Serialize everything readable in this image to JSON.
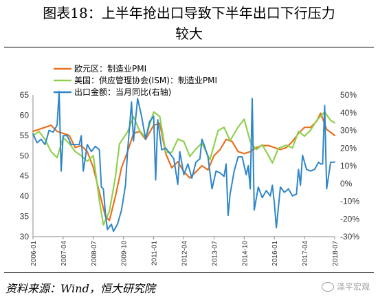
{
  "title": {
    "line1": "图表18：上半年抢出口导致下半年出口下行压力",
    "line2": "较大"
  },
  "source": "资料来源：Wind，恒大研究院",
  "watermark": "泽平宏观",
  "watermark_icon": "wechat-icon",
  "chart_data": {
    "type": "line",
    "left_axis": {
      "ylim": [
        30,
        65
      ],
      "ticks": [
        30,
        35,
        40,
        45,
        50,
        55,
        60,
        65
      ]
    },
    "right_axis": {
      "ylim": [
        -30,
        50
      ],
      "ticks": [
        "-30%",
        "-20%",
        "-10%",
        "0%",
        "10%",
        "20%",
        "30%",
        "40%",
        "50%"
      ]
    },
    "x_ticks": [
      "2006-01",
      "2007-04",
      "2008-07",
      "2009-10",
      "2011-01",
      "2012-04",
      "2013-07",
      "2014-10",
      "2016-01",
      "2017-04",
      "2018-07"
    ],
    "x_range": [
      "2006-01",
      "2018-07"
    ],
    "legend_position": "top-left",
    "grid": false,
    "series": [
      {
        "name": "欧元区：制造业PMI",
        "color": "#E8701E",
        "axis": "left",
        "points": [
          [
            "2006-01",
            56
          ],
          [
            "2006-07",
            57
          ],
          [
            "2006-10",
            57.5
          ],
          [
            "2007-01",
            56
          ],
          [
            "2007-04",
            55.5
          ],
          [
            "2007-07",
            55
          ],
          [
            "2007-10",
            52
          ],
          [
            "2008-01",
            52.5
          ],
          [
            "2008-04",
            51
          ],
          [
            "2008-07",
            47
          ],
          [
            "2008-10",
            41
          ],
          [
            "2009-01",
            35
          ],
          [
            "2009-03",
            34
          ],
          [
            "2009-06",
            40
          ],
          [
            "2009-09",
            47
          ],
          [
            "2009-12",
            51
          ],
          [
            "2010-03",
            55.5
          ],
          [
            "2010-06",
            56
          ],
          [
            "2010-09",
            54
          ],
          [
            "2011-01",
            57.5
          ],
          [
            "2011-04",
            58
          ],
          [
            "2011-07",
            50.5
          ],
          [
            "2011-10",
            47
          ],
          [
            "2012-01",
            48.5
          ],
          [
            "2012-04",
            46
          ],
          [
            "2012-07",
            44.5
          ],
          [
            "2012-10",
            46
          ],
          [
            "2013-01",
            47.5
          ],
          [
            "2013-04",
            46.5
          ],
          [
            "2013-07",
            50
          ],
          [
            "2013-10",
            51.5
          ],
          [
            "2014-01",
            54
          ],
          [
            "2014-04",
            53.5
          ],
          [
            "2014-07",
            51
          ],
          [
            "2014-10",
            50.5
          ],
          [
            "2015-01",
            51
          ],
          [
            "2015-04",
            52
          ],
          [
            "2015-07",
            52.5
          ],
          [
            "2015-10",
            52.5
          ],
          [
            "2016-01",
            52
          ],
          [
            "2016-04",
            51.5
          ],
          [
            "2016-07",
            52
          ],
          [
            "2016-10",
            53.5
          ],
          [
            "2017-01",
            55.5
          ],
          [
            "2017-04",
            57
          ],
          [
            "2017-07",
            57
          ],
          [
            "2017-10",
            58.5
          ],
          [
            "2017-12",
            60.5
          ],
          [
            "2018-03",
            56.5
          ],
          [
            "2018-07",
            55
          ]
        ]
      },
      {
        "name": "美国：供应管理协会(ISM)：制造业PMI",
        "color": "#8FD14F",
        "axis": "left",
        "points": [
          [
            "2006-01",
            55
          ],
          [
            "2006-04",
            56
          ],
          [
            "2006-07",
            54
          ],
          [
            "2006-10",
            51
          ],
          [
            "2007-01",
            49.5
          ],
          [
            "2007-04",
            54.5
          ],
          [
            "2007-07",
            53
          ],
          [
            "2007-10",
            51
          ],
          [
            "2008-01",
            50
          ],
          [
            "2008-04",
            48.6
          ],
          [
            "2008-07",
            50
          ],
          [
            "2008-10",
            38.9
          ],
          [
            "2008-12",
            32.9
          ],
          [
            "2009-03",
            36.3
          ],
          [
            "2009-06",
            44.8
          ],
          [
            "2009-08",
            52.9
          ],
          [
            "2009-12",
            55.9
          ],
          [
            "2010-03",
            59.6
          ],
          [
            "2010-06",
            56.2
          ],
          [
            "2010-09",
            54.4
          ],
          [
            "2011-01",
            60.8
          ],
          [
            "2011-04",
            59.7
          ],
          [
            "2011-07",
            50.9
          ],
          [
            "2011-10",
            50.8
          ],
          [
            "2012-01",
            54.1
          ],
          [
            "2012-04",
            53.5
          ],
          [
            "2012-07",
            49.8
          ],
          [
            "2012-10",
            51.7
          ],
          [
            "2013-01",
            53.1
          ],
          [
            "2013-05",
            49
          ],
          [
            "2013-09",
            56.2
          ],
          [
            "2013-12",
            57
          ],
          [
            "2014-03",
            53.7
          ],
          [
            "2014-07",
            57.1
          ],
          [
            "2014-10",
            59
          ],
          [
            "2015-01",
            53.5
          ],
          [
            "2015-04",
            51.5
          ],
          [
            "2015-07",
            52.7
          ],
          [
            "2015-10",
            50.1
          ],
          [
            "2015-12",
            48.2
          ],
          [
            "2016-03",
            51.8
          ],
          [
            "2016-07",
            52.6
          ],
          [
            "2016-10",
            51.9
          ],
          [
            "2017-01",
            56
          ],
          [
            "2017-04",
            54.8
          ],
          [
            "2017-07",
            56.3
          ],
          [
            "2017-10",
            58.7
          ],
          [
            "2018-02",
            60.8
          ],
          [
            "2018-05",
            58.7
          ],
          [
            "2018-07",
            58.1
          ]
        ]
      },
      {
        "name": "出口金额：当月同比(右轴)",
        "color": "#2E86C8",
        "axis": "right",
        "points": [
          [
            "2006-01",
            28
          ],
          [
            "2006-03",
            23
          ],
          [
            "2006-05",
            25
          ],
          [
            "2006-07",
            22
          ],
          [
            "2006-09",
            30
          ],
          [
            "2006-11",
            29
          ],
          [
            "2007-01",
            33
          ],
          [
            "2007-02",
            52
          ],
          [
            "2007-03",
            7
          ],
          [
            "2007-04",
            27
          ],
          [
            "2007-06",
            27
          ],
          [
            "2007-08",
            22
          ],
          [
            "2007-10",
            22
          ],
          [
            "2007-12",
            22
          ],
          [
            "2008-01",
            27
          ],
          [
            "2008-02",
            7
          ],
          [
            "2008-04",
            22
          ],
          [
            "2008-06",
            18
          ],
          [
            "2008-08",
            21
          ],
          [
            "2008-10",
            19
          ],
          [
            "2008-11",
            -2
          ],
          [
            "2008-12",
            -3
          ],
          [
            "2009-01",
            -17
          ],
          [
            "2009-02",
            -26
          ],
          [
            "2009-04",
            -23
          ],
          [
            "2009-05",
            -27
          ],
          [
            "2009-07",
            -23
          ],
          [
            "2009-09",
            -15
          ],
          [
            "2009-11",
            -1
          ],
          [
            "2009-12",
            18
          ],
          [
            "2010-02",
            46
          ],
          [
            "2010-03",
            24
          ],
          [
            "2010-05",
            48
          ],
          [
            "2010-07",
            38
          ],
          [
            "2010-09",
            25
          ],
          [
            "2010-11",
            35
          ],
          [
            "2011-01",
            38
          ],
          [
            "2011-02",
            2
          ],
          [
            "2011-03",
            36
          ],
          [
            "2011-05",
            19
          ],
          [
            "2011-07",
            20
          ],
          [
            "2011-09",
            17
          ],
          [
            "2011-11",
            14
          ],
          [
            "2012-01",
            -0.5
          ],
          [
            "2012-02",
            18
          ],
          [
            "2012-04",
            5
          ],
          [
            "2012-06",
            11
          ],
          [
            "2012-08",
            3
          ],
          [
            "2012-10",
            12
          ],
          [
            "2012-12",
            14
          ],
          [
            "2013-01",
            25
          ],
          [
            "2013-02",
            22
          ],
          [
            "2013-04",
            15
          ],
          [
            "2013-06",
            -3
          ],
          [
            "2013-08",
            7
          ],
          [
            "2013-10",
            6
          ],
          [
            "2013-12",
            4
          ],
          [
            "2014-01",
            11
          ],
          [
            "2014-02",
            -18
          ],
          [
            "2014-03",
            -6
          ],
          [
            "2014-05",
            7
          ],
          [
            "2014-07",
            15
          ],
          [
            "2014-09",
            15
          ],
          [
            "2014-11",
            5
          ],
          [
            "2014-12",
            10
          ],
          [
            "2015-01",
            -3
          ],
          [
            "2015-02",
            48
          ],
          [
            "2015-03",
            -15
          ],
          [
            "2015-05",
            -2
          ],
          [
            "2015-07",
            -8
          ],
          [
            "2015-09",
            -4
          ],
          [
            "2015-11",
            -7
          ],
          [
            "2015-12",
            -1
          ],
          [
            "2016-01",
            -11
          ],
          [
            "2016-02",
            -25
          ],
          [
            "2016-04",
            -2
          ],
          [
            "2016-06",
            -5
          ],
          [
            "2016-08",
            -3
          ],
          [
            "2016-10",
            -7
          ],
          [
            "2016-12",
            -6
          ],
          [
            "2017-01",
            8
          ],
          [
            "2017-02",
            -1
          ],
          [
            "2017-03",
            16
          ],
          [
            "2017-05",
            8
          ],
          [
            "2017-07",
            7
          ],
          [
            "2017-09",
            8
          ],
          [
            "2017-11",
            12
          ],
          [
            "2017-12",
            11
          ],
          [
            "2018-01",
            11
          ],
          [
            "2018-02",
            44
          ],
          [
            "2018-03",
            -3
          ],
          [
            "2018-05",
            12
          ],
          [
            "2018-07",
            12
          ]
        ]
      }
    ]
  }
}
